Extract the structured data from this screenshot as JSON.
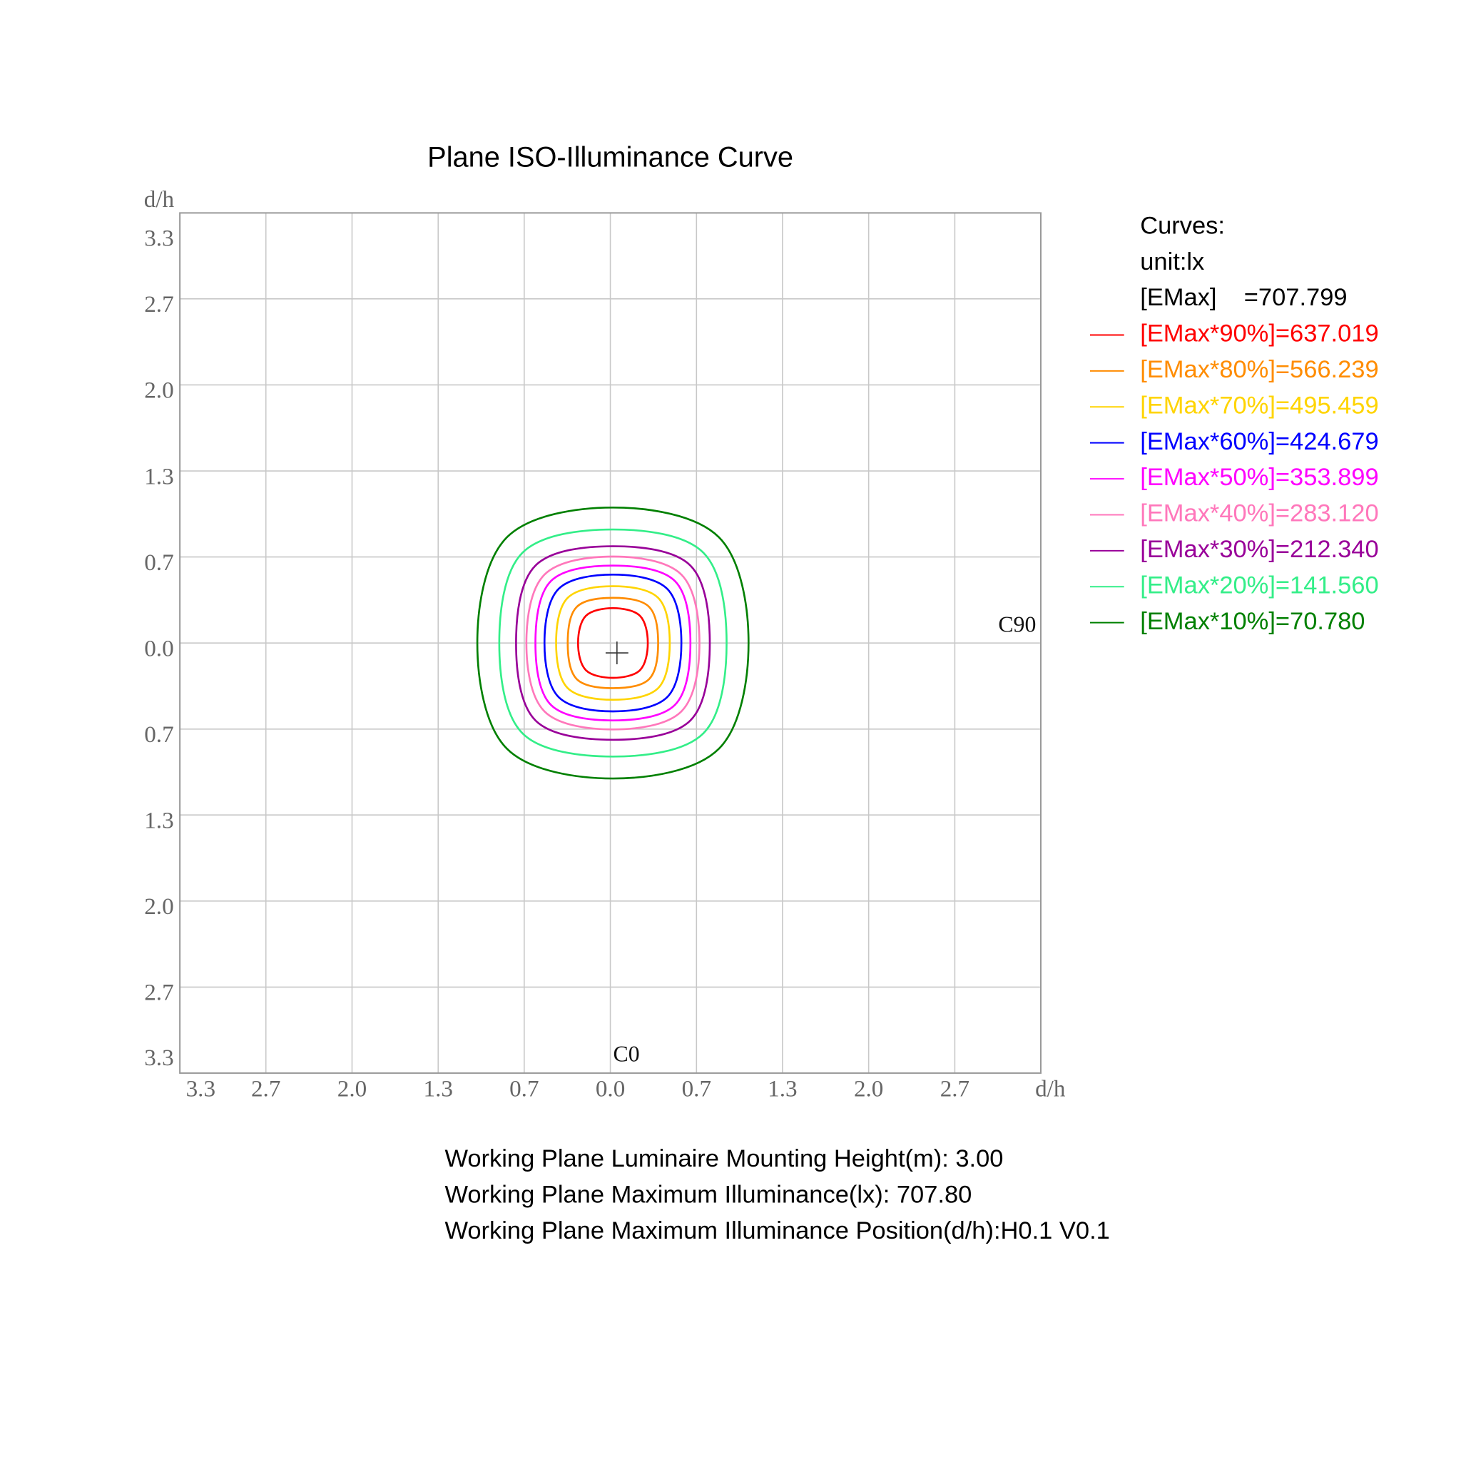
{
  "chart_data": {
    "type": "contour",
    "title": "Plane ISO-Illuminance Curve",
    "xlabel": "d/h",
    "ylabel": "d/h",
    "xlim": [
      -3.333,
      3.333
    ],
    "ylim": [
      -3.333,
      3.333
    ],
    "xticks": [
      {
        "value": -3.333,
        "label": "3.3"
      },
      {
        "value": -2.667,
        "label": "2.7"
      },
      {
        "value": -2,
        "label": "2.0"
      },
      {
        "value": -1.333,
        "label": "1.3"
      },
      {
        "value": -0.667,
        "label": "0.7"
      },
      {
        "value": 0,
        "label": "0.0"
      },
      {
        "value": 0.667,
        "label": "0.7"
      },
      {
        "value": 1.333,
        "label": "1.3"
      },
      {
        "value": 2,
        "label": "2.0"
      },
      {
        "value": 2.667,
        "label": "2.7"
      }
    ],
    "yticks": [
      {
        "value": 3.333,
        "label": "3.3"
      },
      {
        "value": 2.667,
        "label": "2.7"
      },
      {
        "value": 2,
        "label": "2.0"
      },
      {
        "value": 1.333,
        "label": "1.3"
      },
      {
        "value": 0.667,
        "label": "0.7"
      },
      {
        "value": 0,
        "label": "0.0"
      },
      {
        "value": -0.667,
        "label": "0.7"
      },
      {
        "value": -1.333,
        "label": "1.3"
      },
      {
        "value": -2,
        "label": "2.0"
      },
      {
        "value": -2.667,
        "label": "2.7"
      },
      {
        "value": -3.333,
        "label": "3.3"
      }
    ],
    "grid": true,
    "annotations": [
      "C90",
      "C0"
    ],
    "legend": {
      "title": "Curves:",
      "unit": "unit:lx",
      "emax": "[EMax]    =707.799"
    },
    "series": [
      {
        "name": "[EMax*90%]=637.019",
        "color": "#ff0000",
        "x": [
          0.29,
          0.23,
          0.02,
          -0.19,
          -0.25,
          -0.19,
          0.02,
          0.23
        ],
        "y": [
          0,
          0.21,
          0.27,
          0.21,
          0,
          -0.21,
          -0.27,
          -0.21
        ]
      },
      {
        "name": "[EMax*80%]=566.239",
        "color": "#ff8c00",
        "x": [
          0.37,
          0.3,
          0.02,
          -0.26,
          -0.33,
          -0.26,
          0.02,
          0.3
        ],
        "y": [
          0,
          0.28,
          0.35,
          0.28,
          0,
          -0.28,
          -0.35,
          -0.28
        ]
      },
      {
        "name": "[EMax*70%]=495.459",
        "color": "#ffd400",
        "x": [
          0.46,
          0.37,
          0.02,
          -0.33,
          -0.42,
          -0.33,
          0.02,
          0.37
        ],
        "y": [
          0,
          0.35,
          0.44,
          0.35,
          0,
          -0.35,
          -0.44,
          -0.35
        ]
      },
      {
        "name": "[EMax*60%]=424.679",
        "color": "#0000ff",
        "x": [
          0.55,
          0.44,
          0.02,
          -0.4,
          -0.51,
          -0.4,
          0.02,
          0.44
        ],
        "y": [
          0,
          0.42,
          0.53,
          0.42,
          0,
          -0.42,
          -0.53,
          -0.42
        ]
      },
      {
        "name": "[EMax*50%]=353.899",
        "color": "#ff00ff",
        "x": [
          0.62,
          0.5,
          0.02,
          -0.46,
          -0.58,
          -0.46,
          0.02,
          0.5
        ],
        "y": [
          0,
          0.48,
          0.6,
          0.48,
          0,
          -0.48,
          -0.6,
          -0.48
        ]
      },
      {
        "name": "[EMax*40%]=283.120",
        "color": "#ff77bb",
        "x": [
          0.69,
          0.55,
          0.02,
          -0.51,
          -0.65,
          -0.51,
          0.02,
          0.55
        ],
        "y": [
          0,
          0.53,
          0.67,
          0.53,
          0,
          -0.53,
          -0.67,
          -0.53
        ]
      },
      {
        "name": "[EMax*30%]=212.340",
        "color": "#990099",
        "x": [
          0.77,
          0.62,
          0.02,
          -0.58,
          -0.73,
          -0.58,
          0.02,
          0.62
        ],
        "y": [
          0,
          0.6,
          0.75,
          0.6,
          0,
          -0.6,
          -0.75,
          -0.6
        ]
      },
      {
        "name": "[EMax*20%]=141.560",
        "color": "#33ee88",
        "x": [
          0.9,
          0.72,
          0.02,
          -0.68,
          -0.86,
          -0.68,
          0.02,
          0.72
        ],
        "y": [
          0,
          0.7,
          0.88,
          0.7,
          0,
          -0.7,
          -0.88,
          -0.7
        ]
      },
      {
        "name": "[EMax*10%]=70.780",
        "color": "#008000",
        "x": [
          1.07,
          0.84,
          0.02,
          -0.8,
          -1.03,
          -0.8,
          0.02,
          0.84
        ],
        "y": [
          0,
          0.82,
          1.05,
          0.82,
          0,
          -0.82,
          -1.05,
          -0.82
        ]
      }
    ],
    "notes": [
      "Working Plane Luminaire Mounting Height(m): 3.00",
      "Working Plane Maximum Illuminance(lx): 707.80",
      "Working Plane Maximum Illuminance Position(d/h):H0.1 V0.1"
    ]
  }
}
